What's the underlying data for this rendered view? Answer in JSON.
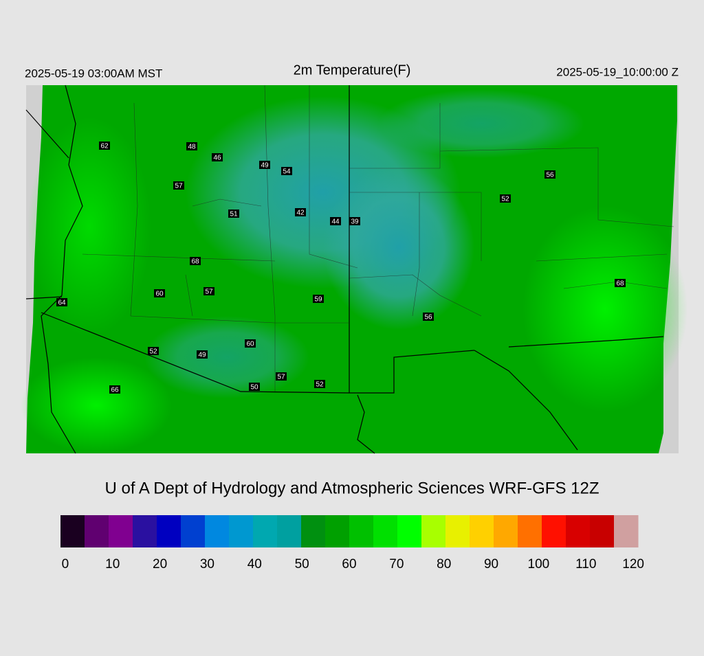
{
  "header": {
    "left": "2025-05-19 03:00AM MST",
    "title": "2m Temperature(F)",
    "right": "2025-05-19_10:00:00 Z"
  },
  "stations": [
    62,
    48,
    46,
    49,
    54,
    57,
    52,
    56,
    51,
    42,
    44,
    39,
    68,
    60,
    57,
    64,
    59,
    56,
    68,
    60,
    52,
    49,
    57,
    50,
    52,
    66
  ],
  "credit": "U of A Dept of Hydrology and Atmospheric Sciences WRF-GFS 12Z",
  "colorbar": {
    "range": [
      -1,
      121
    ],
    "ticks": [
      0,
      10,
      20,
      30,
      40,
      50,
      60,
      70,
      80,
      90,
      100,
      110,
      120
    ],
    "colors": [
      "#1a0020",
      "#600070",
      "#800090",
      "#2a10a0",
      "#0000c0",
      "#0040d0",
      "#0088e0",
      "#0098d0",
      "#00a8b0",
      "#00a0a0",
      "#009010",
      "#00a000",
      "#00c000",
      "#00e000",
      "#00ff00",
      "#a8ff00",
      "#e8f000",
      "#ffd000",
      "#ffa800",
      "#ff7000",
      "#ff1000",
      "#d80000",
      "#c80000",
      "#d0a0a0"
    ]
  }
}
